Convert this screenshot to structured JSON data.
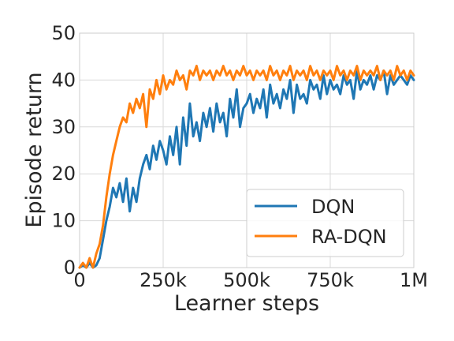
{
  "chart_data": {
    "type": "line",
    "title": "",
    "xlabel": "Learner steps",
    "ylabel": "Episode return",
    "xlim": [
      0,
      1000000
    ],
    "ylim": [
      0,
      50
    ],
    "x_ticks": [
      {
        "value": 0,
        "label": "0"
      },
      {
        "value": 250000,
        "label": "250k"
      },
      {
        "value": 500000,
        "label": "500k"
      },
      {
        "value": 750000,
        "label": "750k"
      },
      {
        "value": 1000000,
        "label": "1M"
      }
    ],
    "y_ticks": [
      {
        "value": 0,
        "label": "0"
      },
      {
        "value": 10,
        "label": "10"
      },
      {
        "value": 20,
        "label": "20"
      },
      {
        "value": 30,
        "label": "30"
      },
      {
        "value": 40,
        "label": "40"
      },
      {
        "value": 50,
        "label": "50"
      }
    ],
    "grid": true,
    "legend_position": "lower-right",
    "series": [
      {
        "name": "DQN",
        "color": "#1f77b4",
        "x": [
          0,
          10000,
          20000,
          30000,
          40000,
          50000,
          60000,
          70000,
          80000,
          90000,
          100000,
          110000,
          120000,
          130000,
          140000,
          150000,
          160000,
          170000,
          180000,
          190000,
          200000,
          210000,
          220000,
          230000,
          240000,
          250000,
          260000,
          270000,
          280000,
          290000,
          300000,
          310000,
          320000,
          330000,
          340000,
          350000,
          360000,
          370000,
          380000,
          390000,
          400000,
          410000,
          420000,
          430000,
          440000,
          450000,
          460000,
          470000,
          480000,
          490000,
          500000,
          510000,
          520000,
          530000,
          540000,
          550000,
          560000,
          570000,
          580000,
          590000,
          600000,
          610000,
          620000,
          630000,
          640000,
          650000,
          660000,
          670000,
          680000,
          690000,
          700000,
          710000,
          720000,
          730000,
          740000,
          750000,
          760000,
          770000,
          780000,
          790000,
          800000,
          810000,
          820000,
          830000,
          840000,
          850000,
          860000,
          870000,
          880000,
          890000,
          900000,
          910000,
          920000,
          930000,
          940000,
          950000,
          960000,
          970000,
          980000,
          990000,
          1000000
        ],
        "values": [
          0,
          0.5,
          0,
          1,
          0,
          0.5,
          2,
          6,
          10,
          13,
          17,
          15,
          18,
          14,
          19,
          12,
          17,
          14,
          19,
          22,
          24,
          21,
          26,
          23,
          27,
          25,
          22,
          28,
          24,
          30,
          22,
          32,
          26,
          35,
          28,
          31,
          27,
          33,
          30,
          34,
          29,
          35,
          31,
          33,
          28,
          36,
          32,
          38,
          30,
          34,
          35,
          37,
          33,
          36,
          34,
          38,
          32,
          39,
          35,
          37,
          34,
          38,
          36,
          40,
          33,
          39,
          36,
          37,
          35,
          40,
          38,
          39,
          36,
          41,
          37,
          40,
          38,
          39,
          37,
          41,
          39,
          40,
          36,
          42,
          38,
          40,
          39,
          41,
          38,
          41,
          40,
          42,
          37,
          41,
          39,
          40,
          41,
          40,
          39,
          41,
          40
        ]
      },
      {
        "name": "RA-DQN",
        "color": "#ff7f0e",
        "x": [
          0,
          10000,
          20000,
          30000,
          40000,
          50000,
          60000,
          70000,
          80000,
          90000,
          100000,
          110000,
          120000,
          130000,
          140000,
          150000,
          160000,
          170000,
          180000,
          190000,
          200000,
          210000,
          220000,
          230000,
          240000,
          250000,
          260000,
          270000,
          280000,
          290000,
          300000,
          310000,
          320000,
          330000,
          340000,
          350000,
          360000,
          370000,
          380000,
          390000,
          400000,
          410000,
          420000,
          430000,
          440000,
          450000,
          460000,
          470000,
          480000,
          490000,
          500000,
          510000,
          520000,
          530000,
          540000,
          550000,
          560000,
          570000,
          580000,
          590000,
          600000,
          610000,
          620000,
          630000,
          640000,
          650000,
          660000,
          670000,
          680000,
          690000,
          700000,
          710000,
          720000,
          730000,
          740000,
          750000,
          760000,
          770000,
          780000,
          790000,
          800000,
          810000,
          820000,
          830000,
          840000,
          850000,
          860000,
          870000,
          880000,
          890000,
          900000,
          910000,
          920000,
          930000,
          940000,
          950000,
          960000,
          970000,
          980000,
          990000,
          1000000
        ],
        "values": [
          0,
          1,
          0,
          2,
          0,
          3,
          5,
          9,
          15,
          20,
          24,
          27,
          30,
          32,
          31,
          35,
          33,
          36,
          34,
          37,
          30,
          38,
          36,
          40,
          37,
          41,
          38,
          40,
          39,
          42,
          40,
          41,
          38,
          42,
          41,
          43,
          40,
          42,
          41,
          42,
          40,
          42,
          41,
          43,
          41,
          42,
          40,
          42,
          41,
          43,
          41,
          42,
          40,
          42,
          41,
          42,
          40,
          43,
          41,
          42,
          40,
          42,
          41,
          43,
          40,
          42,
          41,
          42,
          40,
          43,
          41,
          42,
          40,
          42,
          41,
          42,
          40,
          43,
          41,
          42,
          40,
          42,
          41,
          43,
          40,
          42,
          41,
          42,
          41,
          43,
          40,
          42,
          41,
          42,
          40,
          43,
          41,
          42,
          40,
          42,
          41
        ]
      }
    ]
  }
}
